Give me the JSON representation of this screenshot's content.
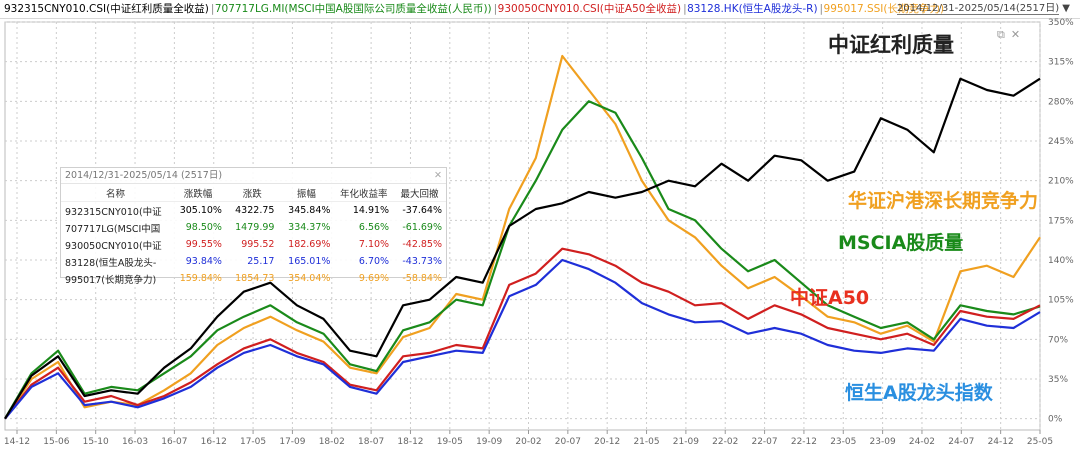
{
  "header": {
    "series": [
      {
        "label": "932315CNY010.CSI(中证红利质量全收益)",
        "color": "#000000"
      },
      {
        "label": "707717LG.MI(MSCI中国A股国际公司质量全收益(人民币))",
        "color": "#1a8a1a"
      },
      {
        "label": "930050CNY010.CSI(中证A50全收益)",
        "color": "#d01f1f"
      },
      {
        "label": "83128.HK(恒生A股龙头-R)",
        "color": "#1f2fd8"
      },
      {
        "label": "995017.SSI(长期竞争力)",
        "color": "#f0a020"
      }
    ],
    "range": "2014/12/31-2025/05/14(2517日)",
    "range_arrow": "▼"
  },
  "window_icons": {
    "restore": "⧉",
    "close": "✕"
  },
  "stats_table": {
    "title": "2014/12/31-2025/05/14 (2517日)",
    "close": "✕",
    "columns": [
      "名称",
      "涨跌幅",
      "涨跌",
      "振幅",
      "年化收益率",
      "最大回撤"
    ],
    "rows": [
      {
        "name": "932315CNY010(中证",
        "chg": "305.10%",
        "diff": "4322.75",
        "amp": "345.84%",
        "ann": "14.91%",
        "mdd": "-37.64%",
        "color": "#000000"
      },
      {
        "name": "707717LG(MSCI中国",
        "chg": "98.50%",
        "diff": "1479.99",
        "amp": "334.37%",
        "ann": "6.56%",
        "mdd": "-61.69%",
        "color": "#1a8a1a"
      },
      {
        "name": "930050CNY010(中证",
        "chg": "99.55%",
        "diff": "995.52",
        "amp": "182.69%",
        "ann": "7.10%",
        "mdd": "-42.85%",
        "color": "#d01f1f"
      },
      {
        "name": "83128(恒生A股龙头-",
        "chg": "93.84%",
        "diff": "25.17",
        "amp": "165.01%",
        "ann": "6.70%",
        "mdd": "-43.73%",
        "color": "#1f2fd8"
      },
      {
        "name": "995017(长期竞争力)",
        "chg": "159.84%",
        "diff": "1854.73",
        "amp": "354.04%",
        "ann": "9.69%",
        "mdd": "-58.84%",
        "color": "#f0a020"
      }
    ]
  },
  "chart_data": {
    "type": "line",
    "x_ticks": [
      "14-12",
      "15-06",
      "15-10",
      "16-03",
      "16-07",
      "16-12",
      "17-05",
      "17-09",
      "18-02",
      "18-07",
      "18-12",
      "19-05",
      "19-09",
      "20-02",
      "20-07",
      "20-12",
      "21-05",
      "21-09",
      "22-02",
      "22-07",
      "22-12",
      "23-05",
      "23-09",
      "24-02",
      "24-07",
      "24-12",
      "25-05"
    ],
    "y_ticks": [
      "0%",
      "35%",
      "70%",
      "105%",
      "140%",
      "175%",
      "210%",
      "245%",
      "280%",
      "315%",
      "350%"
    ],
    "ylim": [
      -10,
      350
    ],
    "x": [
      "2014-12",
      "2015-04",
      "2015-06",
      "2015-09",
      "2015-12",
      "2016-03",
      "2016-07",
      "2016-12",
      "2017-05",
      "2017-09",
      "2018-01",
      "2018-04",
      "2018-07",
      "2018-10",
      "2018-12",
      "2019-04",
      "2019-08",
      "2019-12",
      "2020-03",
      "2020-07",
      "2020-10",
      "2020-12",
      "2021-02",
      "2021-05",
      "2021-09",
      "2022-01",
      "2022-04",
      "2022-07",
      "2022-10",
      "2023-01",
      "2023-05",
      "2023-09",
      "2023-12",
      "2024-02",
      "2024-05",
      "2024-08",
      "2024-10",
      "2024-12",
      "2025-03",
      "2025-05"
    ],
    "series": [
      {
        "name": "中证红利质量",
        "color": "#000000",
        "values": [
          0,
          38,
          55,
          20,
          25,
          22,
          45,
          62,
          90,
          112,
          120,
          100,
          88,
          60,
          55,
          100,
          105,
          125,
          120,
          170,
          185,
          190,
          200,
          195,
          200,
          210,
          205,
          225,
          210,
          232,
          228,
          210,
          218,
          265,
          255,
          235,
          300,
          290,
          285,
          300
        ]
      },
      {
        "name": "MSCIA股质量",
        "color": "#1a8a1a",
        "values": [
          0,
          40,
          60,
          22,
          28,
          25,
          40,
          55,
          78,
          90,
          100,
          85,
          75,
          48,
          42,
          78,
          85,
          105,
          100,
          170,
          210,
          255,
          280,
          270,
          230,
          185,
          175,
          150,
          130,
          140,
          120,
          100,
          90,
          80,
          85,
          70,
          100,
          95,
          92,
          99
        ]
      },
      {
        "name": "中证A50",
        "color": "#d01f1f",
        "values": [
          0,
          30,
          45,
          15,
          20,
          12,
          20,
          32,
          48,
          62,
          70,
          58,
          50,
          30,
          25,
          55,
          58,
          65,
          62,
          118,
          128,
          150,
          145,
          135,
          120,
          112,
          100,
          102,
          88,
          100,
          92,
          80,
          75,
          70,
          75,
          65,
          95,
          90,
          88,
          100
        ]
      },
      {
        "name": "恒生A股龙头指数",
        "color": "#1f2fd8",
        "values": [
          0,
          28,
          40,
          12,
          15,
          10,
          18,
          28,
          45,
          58,
          65,
          55,
          48,
          28,
          22,
          50,
          55,
          60,
          58,
          108,
          118,
          140,
          132,
          120,
          102,
          92,
          85,
          86,
          75,
          80,
          75,
          65,
          60,
          58,
          62,
          60,
          88,
          82,
          80,
          94
        ]
      },
      {
        "name": "华证沪港深长期竞争力",
        "color": "#f0a020",
        "values": [
          0,
          35,
          50,
          10,
          15,
          12,
          25,
          40,
          65,
          80,
          90,
          78,
          68,
          45,
          40,
          72,
          80,
          110,
          105,
          185,
          230,
          320,
          290,
          260,
          210,
          175,
          160,
          135,
          115,
          125,
          108,
          90,
          85,
          75,
          82,
          68,
          130,
          135,
          125,
          160
        ]
      }
    ],
    "annotations": [
      "中证红利质量",
      "华证沪港深长期竞争力",
      "MSCIA股质量",
      "中证A50",
      "恒生A股龙头指数"
    ]
  }
}
